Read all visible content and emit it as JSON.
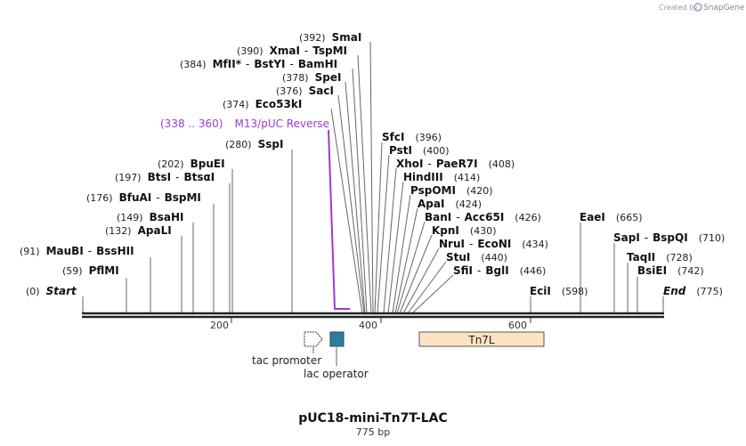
{
  "branding": {
    "created_by": "Created by",
    "product": "SnapGene"
  },
  "map": {
    "title": "pUC18-mini-Tn7T-LAC",
    "length_label": "775 bp",
    "ticks": [
      "200",
      "400",
      "600"
    ]
  },
  "sites": [
    {
      "pos": "(392)",
      "parts": [
        {
          "t": "SmaI",
          "c": "ename"
        }
      ]
    },
    {
      "pos": "(390)",
      "parts": [
        {
          "t": "XmaI",
          "c": "ename"
        },
        {
          "t": "-",
          "c": "sep"
        },
        {
          "t": "TspMI",
          "c": "ename"
        }
      ]
    },
    {
      "pos": "(384)",
      "parts": [
        {
          "t": "MfII",
          "c": "ename"
        },
        {
          "t": "*",
          "c": "star"
        },
        {
          "t": "-",
          "c": "sep"
        },
        {
          "t": "BstYI",
          "c": "ename"
        },
        {
          "t": "-",
          "c": "sep"
        },
        {
          "t": "BamHI",
          "c": "ename"
        }
      ]
    },
    {
      "pos": "(378)",
      "parts": [
        {
          "t": "SpeI",
          "c": "ename"
        }
      ]
    },
    {
      "pos": "(376)",
      "parts": [
        {
          "t": "SacI",
          "c": "ename"
        }
      ]
    },
    {
      "pos": "(374)",
      "parts": [
        {
          "t": "Eco53kI",
          "c": "ename"
        }
      ]
    },
    {
      "pos": "(280)",
      "parts": [
        {
          "t": "SspI",
          "c": "ename"
        }
      ]
    },
    {
      "pos": "(202)",
      "parts": [
        {
          "t": "BpuEI",
          "c": "ename"
        }
      ]
    },
    {
      "pos": "(197)",
      "parts": [
        {
          "t": "BtsI",
          "c": "ename"
        },
        {
          "t": "-",
          "c": "sep"
        },
        {
          "t": "BtsαI",
          "c": "ename"
        }
      ]
    },
    {
      "pos": "(176)",
      "parts": [
        {
          "t": "BfuAI",
          "c": "ename"
        },
        {
          "t": "-",
          "c": "sep"
        },
        {
          "t": "BspMI",
          "c": "ename"
        }
      ]
    },
    {
      "pos": "(149)",
      "parts": [
        {
          "t": "BsaHI",
          "c": "ename"
        }
      ]
    },
    {
      "pos": "(132)",
      "parts": [
        {
          "t": "ApaLI",
          "c": "ename"
        }
      ]
    },
    {
      "pos": "(91)",
      "parts": [
        {
          "t": "MauBI",
          "c": "ename"
        },
        {
          "t": "-",
          "c": "sep"
        },
        {
          "t": "BssHII",
          "c": "ename"
        }
      ]
    },
    {
      "pos": "(59)",
      "parts": [
        {
          "t": "PflMI",
          "c": "ename"
        }
      ]
    },
    {
      "pos": "(0)",
      "parts": [
        {
          "t": "Start",
          "c": "italic-b"
        }
      ]
    },
    {
      "pos": "(396)",
      "parts": [
        {
          "t": "SfcI",
          "c": "ename"
        }
      ]
    },
    {
      "pos": "(400)",
      "parts": [
        {
          "t": "PstI",
          "c": "ename"
        }
      ]
    },
    {
      "pos": "(408)",
      "parts": [
        {
          "t": "XhoI",
          "c": "ename"
        },
        {
          "t": "-",
          "c": "sep"
        },
        {
          "t": "PaeR7I",
          "c": "ename"
        }
      ]
    },
    {
      "pos": "(414)",
      "parts": [
        {
          "t": "HindIII",
          "c": "ename"
        }
      ]
    },
    {
      "pos": "(420)",
      "parts": [
        {
          "t": "PspOMI",
          "c": "ename"
        }
      ]
    },
    {
      "pos": "(424)",
      "parts": [
        {
          "t": "ApaI",
          "c": "ename"
        }
      ]
    },
    {
      "pos": "(426)",
      "parts": [
        {
          "t": "BanI",
          "c": "ename"
        },
        {
          "t": "-",
          "c": "sep"
        },
        {
          "t": "Acc65I",
          "c": "ename"
        }
      ]
    },
    {
      "pos": "(430)",
      "parts": [
        {
          "t": "KpnI",
          "c": "ename"
        }
      ]
    },
    {
      "pos": "(434)",
      "parts": [
        {
          "t": "NruI",
          "c": "ename"
        },
        {
          "t": "-",
          "c": "sep"
        },
        {
          "t": "EcoNI",
          "c": "ename"
        }
      ]
    },
    {
      "pos": "(440)",
      "parts": [
        {
          "t": "StuI",
          "c": "ename"
        }
      ]
    },
    {
      "pos": "(446)",
      "parts": [
        {
          "t": "SfiI",
          "c": "ename"
        },
        {
          "t": "-",
          "c": "sep"
        },
        {
          "t": "BglI",
          "c": "ename"
        }
      ]
    },
    {
      "pos": "(598)",
      "parts": [
        {
          "t": "EciI",
          "c": "ename"
        }
      ]
    },
    {
      "pos": "(665)",
      "parts": [
        {
          "t": "EaeI",
          "c": "ename"
        }
      ]
    },
    {
      "pos": "(710)",
      "parts": [
        {
          "t": "SapI",
          "c": "ename"
        },
        {
          "t": "-",
          "c": "sep"
        },
        {
          "t": "BspQI",
          "c": "ename"
        }
      ]
    },
    {
      "pos": "(728)",
      "parts": [
        {
          "t": "TaqII",
          "c": "ename"
        }
      ]
    },
    {
      "pos": "(742)",
      "parts": [
        {
          "t": "BsiEI",
          "c": "ename"
        }
      ]
    },
    {
      "pos": "(775)",
      "parts": [
        {
          "t": "End",
          "c": "italic-b"
        }
      ]
    }
  ],
  "primer": {
    "range": "(338 .. 360)",
    "name": "M13/pUC Reverse",
    "color": "#9a3bd6"
  },
  "features": [
    {
      "name": "tac promoter",
      "type": "promoter"
    },
    {
      "name": "lac operator",
      "type": "operator",
      "color": "#2e7d9a"
    },
    {
      "name": "Tn7L",
      "type": "region",
      "color": "#fde3c3"
    }
  ]
}
